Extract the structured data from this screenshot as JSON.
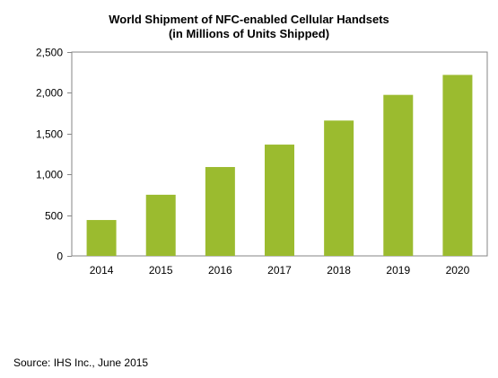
{
  "chart_data": {
    "type": "bar",
    "title": "World Shipment of NFC-enabled Cellular Handsets",
    "subtitle": "(in Millions of Units Shipped)",
    "categories": [
      "2014",
      "2015",
      "2016",
      "2017",
      "2018",
      "2019",
      "2020"
    ],
    "values": [
      440,
      750,
      1090,
      1365,
      1660,
      1975,
      2220
    ],
    "ylim": [
      0,
      2500
    ],
    "yticks": [
      0,
      500,
      1000,
      1500,
      2000,
      2500
    ],
    "ytick_labels": [
      "0",
      "500",
      "1,000",
      "1,500",
      "2,000",
      "2,500"
    ],
    "grid": false,
    "legend": "none",
    "bar_color": "#9bbb2f"
  },
  "footer": {
    "source": "Source: IHS Inc., June 2015"
  }
}
